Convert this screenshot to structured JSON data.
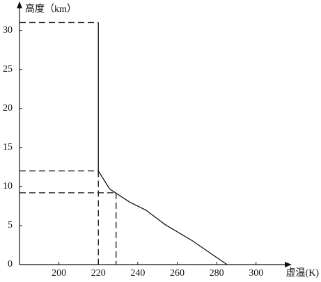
{
  "chart_data": {
    "type": "line",
    "x_label": "虚温(K)",
    "y_label": "高度（km）",
    "xlim": [
      180,
      316
    ],
    "ylim": [
      0,
      33
    ],
    "xticks": [
      200,
      220,
      240,
      260,
      280,
      300
    ],
    "yticks": [
      0,
      5,
      10,
      15,
      20,
      25,
      30
    ],
    "series": [
      {
        "color": "#111111",
        "dashed": false,
        "x": [
          220,
          220,
          225.7,
          235.9,
          244,
          254,
          267.4,
          285.3
        ],
        "values": [
          31,
          12,
          9.7,
          8,
          7,
          5.1,
          3.1,
          0
        ]
      },
      {
        "color": "#111111",
        "dashed": true,
        "x": [
          180,
          220
        ],
        "values": [
          31,
          31
        ]
      },
      {
        "color": "#111111",
        "dashed": true,
        "x": [
          180,
          220
        ],
        "values": [
          12,
          12
        ]
      },
      {
        "color": "#111111",
        "dashed": true,
        "x": [
          180,
          229
        ],
        "values": [
          9.2,
          9.2
        ]
      },
      {
        "color": "#111111",
        "dashed": true,
        "x": [
          220,
          220
        ],
        "values": [
          12,
          0
        ]
      },
      {
        "color": "#111111",
        "dashed": true,
        "x": [
          229,
          229
        ],
        "values": [
          9.2,
          0
        ]
      }
    ]
  }
}
